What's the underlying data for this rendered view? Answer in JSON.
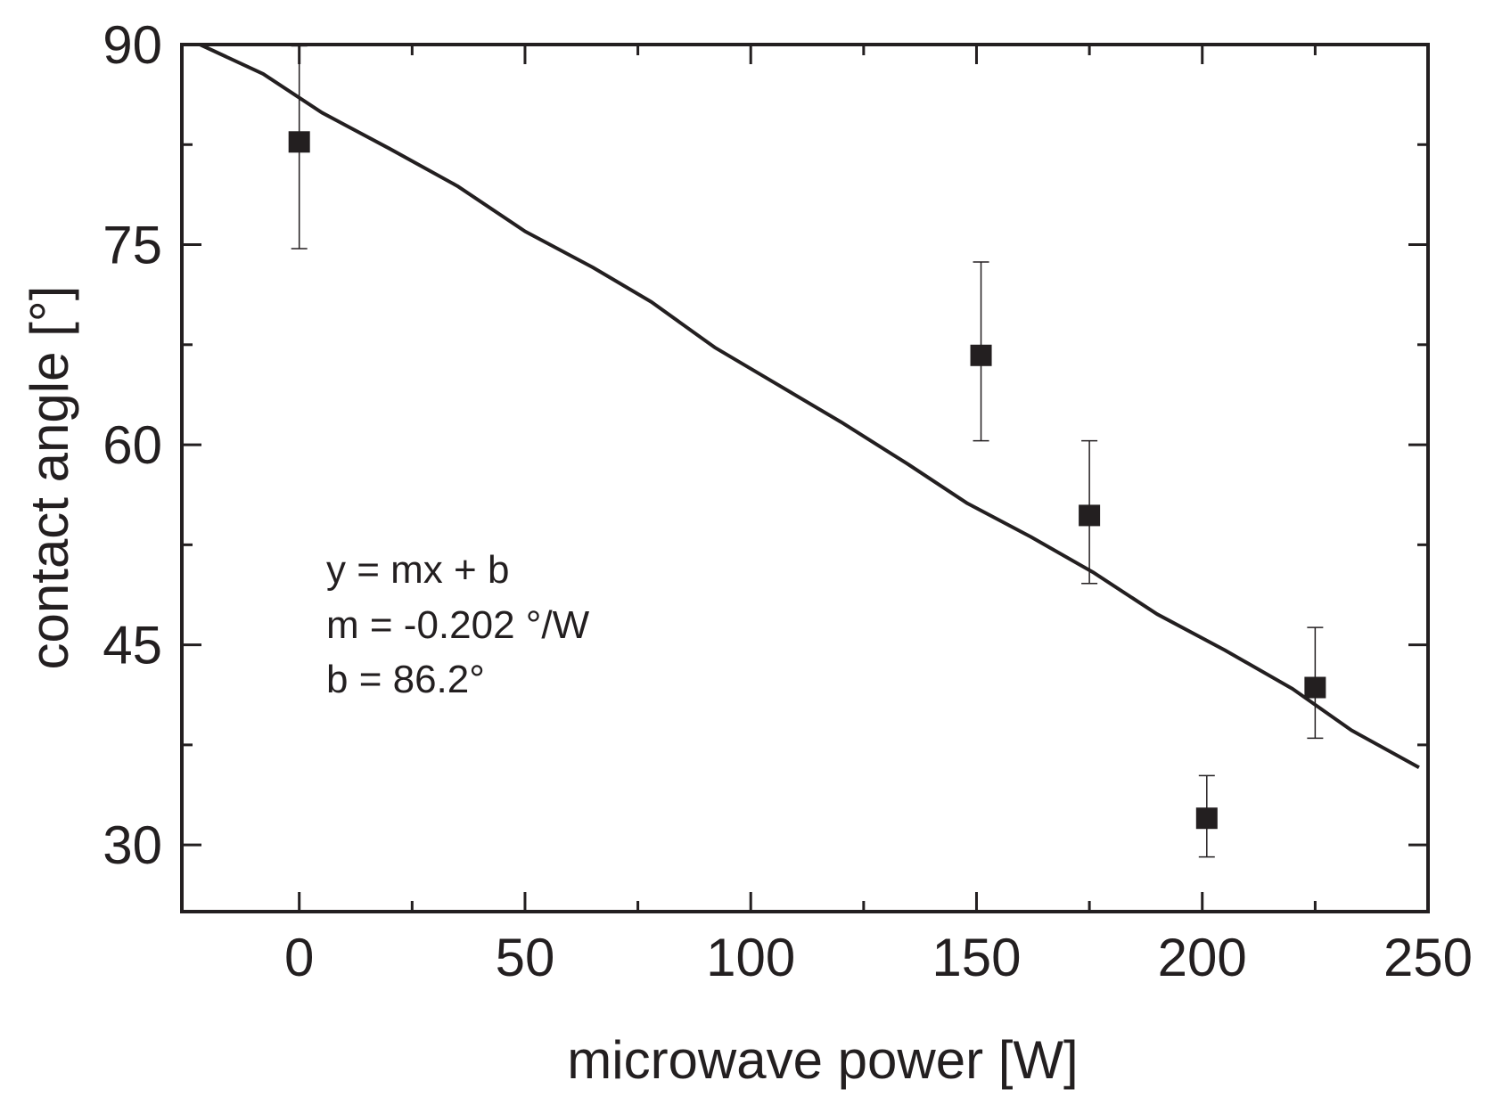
{
  "chart_data": {
    "type": "scatter",
    "xlabel": "microwave power [W]",
    "ylabel": "contact angle [°]",
    "xlim": [
      -26,
      250
    ],
    "ylim": [
      25,
      90
    ],
    "x_ticks": [
      0,
      50,
      100,
      150,
      200,
      250
    ],
    "x_minor_ticks": [
      25,
      75,
      125,
      175,
      225
    ],
    "y_ticks": [
      30,
      45,
      60,
      75,
      90
    ],
    "y_minor_ticks": [
      37.5,
      52.5,
      67.5,
      82.5
    ],
    "grid": false,
    "legend": "none",
    "series": [
      {
        "marker": "square",
        "color": "#231f20",
        "points": [
          {
            "x": 0,
            "y": 82.7,
            "err_low": 74.7,
            "err_high": 89.9
          },
          {
            "x": 151,
            "y": 66.7,
            "err_low": 60.3,
            "err_high": 73.7
          },
          {
            "x": 175,
            "y": 54.7,
            "err_low": 49.6,
            "err_high": 60.3
          },
          {
            "x": 201,
            "y": 32.0,
            "err_low": 29.1,
            "err_high": 35.2
          },
          {
            "x": 225,
            "y": 41.8,
            "err_low": 38.0,
            "err_high": 46.3
          }
        ]
      },
      {
        "line": "linear fit",
        "color": "#231f20",
        "x": [
          -22,
          -8,
          5,
          20,
          35,
          50,
          65,
          78,
          92,
          105,
          120,
          135,
          148,
          162,
          176,
          190,
          205,
          220,
          233,
          248
        ],
        "y": [
          90.0,
          87.8,
          84.9,
          82.2,
          79.4,
          76.0,
          73.3,
          70.7,
          67.3,
          64.7,
          61.7,
          58.5,
          55.6,
          53.1,
          50.4,
          47.3,
          44.6,
          41.7,
          38.6,
          35.8
        ]
      }
    ],
    "annotation": [
      "y = mx + b",
      "m = -0.202 °/W",
      "b = 86.2°"
    ]
  }
}
